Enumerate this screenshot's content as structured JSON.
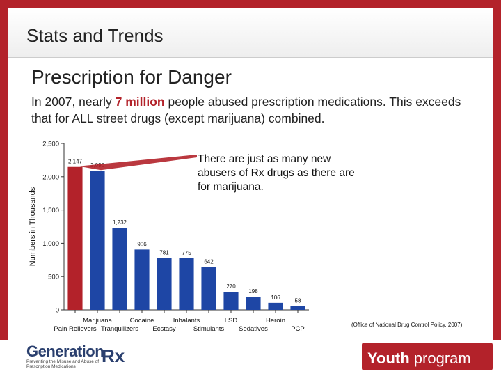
{
  "header": {
    "title": "Stats and Trends"
  },
  "subtitle": "Prescription for Danger",
  "intro": {
    "before": "In 2007, nearly ",
    "highlight": "7 million",
    "after": " people abused prescription medications. This exceeds that for ALL street drugs (except marijuana) combined."
  },
  "callout": "There are just as many new abusers of Rx drugs as there are for marijuana.",
  "source": "(Office of National Drug Control Policy, 2007)",
  "colors": {
    "accent": "#b3222a",
    "bar_blue": "#1e46a5",
    "logo_blue": "#2a3f6e"
  },
  "footer": {
    "logo_word": "Generation",
    "logo_rx": "Rx",
    "logo_tagline": "Preventing the Misuse and Abuse of Prescription Medications",
    "youth_bold": "Youth",
    "youth_rest": " program"
  },
  "chart_data": {
    "type": "bar",
    "title": "",
    "xlabel": "",
    "ylabel": "Numbers in Thousands",
    "ylim": [
      0,
      2500
    ],
    "yticks": [
      "0",
      "500",
      "1,000",
      "1,500",
      "2,000",
      "2,500"
    ],
    "grid": false,
    "categories": [
      "Pain Relievers",
      "Marijuana",
      "Tranquilizers",
      "Cocaine",
      "Ecstasy",
      "Inhalants",
      "Stimulants",
      "LSD",
      "Sedatives",
      "Heroin",
      "PCP"
    ],
    "values": [
      2147,
      2090,
      1232,
      906,
      781,
      775,
      642,
      270,
      198,
      106,
      58
    ],
    "data_labels": [
      "2,147",
      "2,090",
      "1,232",
      "906",
      "781",
      "775",
      "642",
      "270",
      "198",
      "106",
      "58"
    ],
    "highlight_index": 0
  }
}
